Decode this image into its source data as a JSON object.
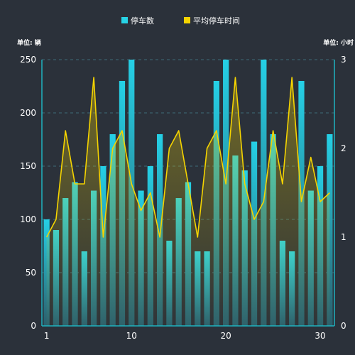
{
  "chart_data": {
    "type": "bar+line",
    "legend": [
      {
        "name": "停车数",
        "color": "#27d3e5"
      },
      {
        "name": "平均停车时间",
        "color": "#f5d400"
      }
    ],
    "left_axis": {
      "unit_label": "单位: 辆",
      "ylim": [
        0,
        250
      ],
      "ticks": [
        0,
        50,
        100,
        150,
        200,
        250
      ]
    },
    "right_axis": {
      "unit_label": "单位: 小时",
      "ylim": [
        0,
        3
      ],
      "ticks": [
        0,
        1,
        2,
        3
      ]
    },
    "x_ticks": [
      1,
      10,
      20,
      30
    ],
    "x": [
      1,
      2,
      3,
      4,
      5,
      6,
      7,
      8,
      9,
      10,
      11,
      12,
      13,
      14,
      15,
      16,
      17,
      18,
      19,
      20,
      21,
      22,
      23,
      24,
      25,
      26,
      27,
      28,
      29,
      30,
      31
    ],
    "series": [
      {
        "name": "停车数",
        "type": "bar",
        "axis": "left",
        "values": [
          100,
          90,
          120,
          135,
          70,
          127,
          150,
          180,
          230,
          250,
          127,
          150,
          180,
          80,
          120,
          135,
          70,
          70,
          230,
          250,
          160,
          146,
          173,
          250,
          180,
          80,
          70,
          230,
          127,
          150,
          180
        ]
      },
      {
        "name": "平均停车时间",
        "type": "line",
        "axis": "right",
        "values": [
          1.0,
          1.2,
          2.2,
          1.6,
          1.6,
          2.8,
          1.0,
          2.0,
          2.2,
          1.6,
          1.3,
          1.5,
          1.0,
          2.0,
          2.2,
          1.6,
          1.0,
          2.0,
          2.2,
          1.6,
          2.8,
          1.6,
          1.2,
          1.4,
          2.2,
          1.6,
          2.8,
          1.4,
          1.9,
          1.4,
          1.5
        ]
      }
    ],
    "colors": {
      "bar_top": "#25d0e6",
      "bar_bottom": "#2a7f86",
      "bar_mid_overlap": "#5fc4a6",
      "line": "#f5d400",
      "area_fill": "#f5d400",
      "grid": "#3c6a78",
      "axis": "#1fb3bf"
    }
  }
}
